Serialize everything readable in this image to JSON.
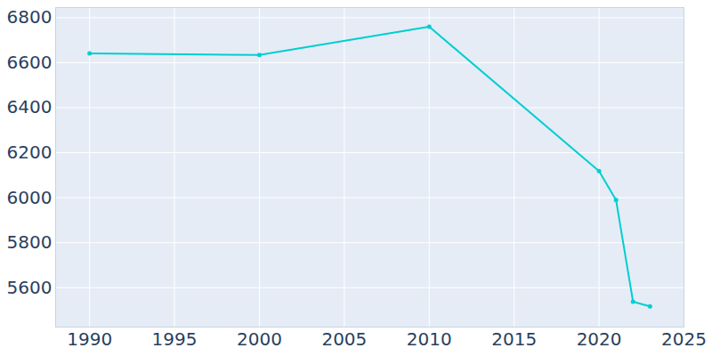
{
  "chart_data": {
    "type": "line",
    "x": [
      1990,
      2000,
      2010,
      2020,
      2021,
      2022,
      2023
    ],
    "values": [
      6641,
      6634,
      6760,
      6118,
      5990,
      5538,
      5517
    ],
    "color": "#00ced1",
    "marker": "circle",
    "xlim": [
      1988,
      2025
    ],
    "xticks": [
      1990,
      1995,
      2000,
      2005,
      2010,
      2015,
      2020,
      2025
    ],
    "ylim": [
      5425,
      6845
    ],
    "yticks": [
      5600,
      5800,
      6000,
      6200,
      6400,
      6600,
      6800
    ],
    "grid": true
  }
}
